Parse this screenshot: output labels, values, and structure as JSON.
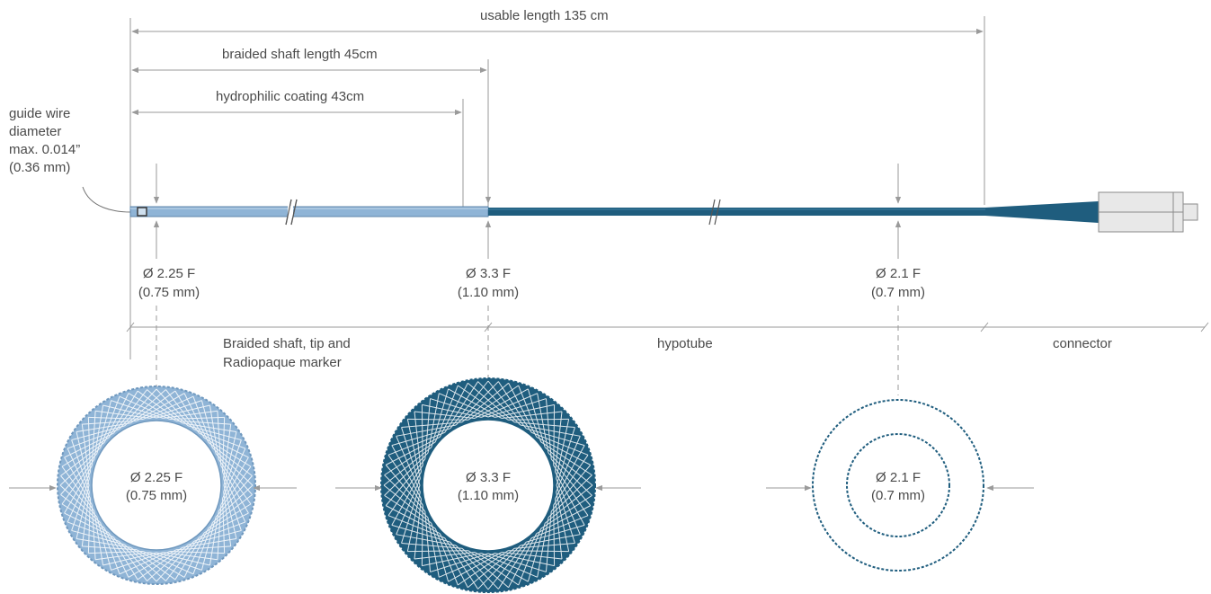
{
  "colors": {
    "braided_shaft": "#8fb4d6",
    "braided_shaft_dark": "#6f98be",
    "hypotube": "#1f5d7e",
    "connector_body": "#e8e8e8",
    "connector_taper": "#1f5d7e",
    "line": "#9a9a9a",
    "text": "#4a4a4a"
  },
  "dimensions": {
    "usable_length": "usable length 135 cm",
    "braided_shaft_length": "braided shaft length 45cm",
    "hydrophilic_coating": "hydrophilic coating 43cm"
  },
  "guide_wire": {
    "line1": "guide wire",
    "line2": "diameter",
    "line3": "max. 0.014”",
    "line4": "(0.36 mm)"
  },
  "callouts": [
    {
      "diameter": "Ø 2.25 F",
      "mm": "(0.75 mm)"
    },
    {
      "diameter": "Ø 3.3 F",
      "mm": "(1.10 mm)"
    },
    {
      "diameter": "Ø 2.1 F",
      "mm": "(0.7 mm)"
    }
  ],
  "sections": {
    "braided_line1": "Braided shaft, tip and",
    "braided_line2": "Radiopaque marker",
    "hypotube": "hypotube",
    "connector": "connector"
  },
  "cross_sections": [
    {
      "diameter": "Ø 2.25 F",
      "mm": "(0.75 mm)",
      "style": "braided-light"
    },
    {
      "diameter": "Ø 3.3 F",
      "mm": "(1.10 mm)",
      "style": "braided-dark"
    },
    {
      "diameter": "Ø 2.1 F",
      "mm": "(0.7 mm)",
      "style": "hypotube-dashed"
    }
  ]
}
